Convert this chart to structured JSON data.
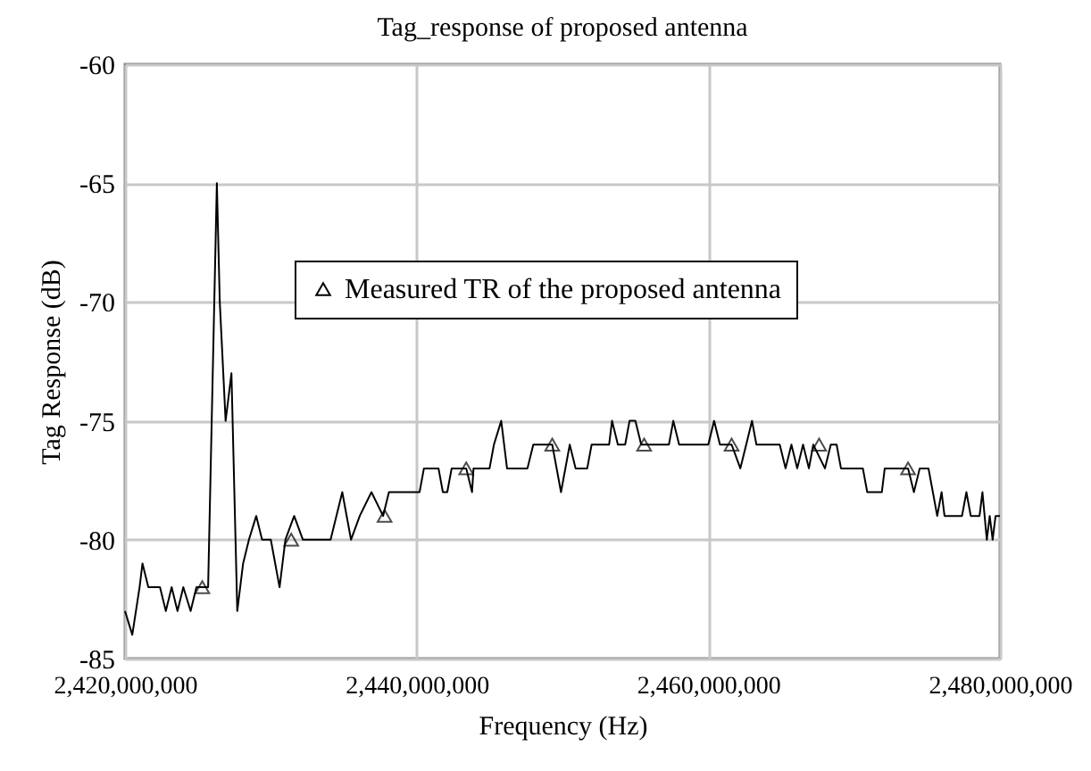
{
  "chart_data": {
    "type": "line",
    "title": "Tag_response of proposed antenna",
    "xlabel": "Frequency (Hz)",
    "ylabel": "Tag Response (dB)",
    "xlim": [
      2420000000,
      2480000000
    ],
    "ylim": [
      -85,
      -60
    ],
    "xticks": [
      {
        "value": 2420000000,
        "label": "2,420,000,000"
      },
      {
        "value": 2440000000,
        "label": "2,440,000,000"
      },
      {
        "value": 2460000000,
        "label": "2,460,000,000"
      },
      {
        "value": 2480000000,
        "label": "2,480,000,000"
      }
    ],
    "yticks": [
      -85,
      -80,
      -75,
      -70,
      -65,
      -60
    ],
    "grid": true,
    "legend": "top",
    "line_style": "solid",
    "series": [
      {
        "name": "Measured TR of the proposed antenna",
        "color": "#000000",
        "marker": "none",
        "x": [
          2420000000,
          2420500000,
          2421000000,
          2421200000,
          2421600000,
          2422400000,
          2422800000,
          2423200000,
          2423600000,
          2424000000,
          2424500000,
          2424900000,
          2425300000,
          2425700000,
          2426300000,
          2426500000,
          2426900000,
          2427300000,
          2427700000,
          2428100000,
          2428500000,
          2429000000,
          2429400000,
          2430000000,
          2430600000,
          2431000000,
          2431600000,
          2432200000,
          2434100000,
          2434900000,
          2435500000,
          2436100000,
          2436900000,
          2437700000,
          2438100000,
          2440200000,
          2440500000,
          2441500000,
          2441800000,
          2442100000,
          2442400000,
          2443400000,
          2443800000,
          2443900000,
          2445000000,
          2445300000,
          2445800000,
          2446200000,
          2447600000,
          2448000000,
          2449300000,
          2449900000,
          2450500000,
          2450900000,
          2451700000,
          2452000000,
          2453200000,
          2453400000,
          2453800000,
          2454300000,
          2454600000,
          2455000000,
          2455400000,
          2457300000,
          2457600000,
          2458000000,
          2460000000,
          2460400000,
          2460800000,
          2461600000,
          2462200000,
          2462600000,
          2463000000,
          2463300000,
          2464900000,
          2465300000,
          2465700000,
          2466100000,
          2466500000,
          2466900000,
          2467200000,
          2468000000,
          2468400000,
          2468800000,
          2469100000,
          2470600000,
          2470900000,
          2471900000,
          2472100000,
          2473700000,
          2474100000,
          2474500000,
          2475100000,
          2475400000,
          2475700000,
          2476000000,
          2476200000,
          2477400000,
          2477700000,
          2478000000,
          2478600000,
          2478800000,
          2479100000,
          2479300000,
          2479500000,
          2479700000,
          2480000000
        ],
        "values": [
          -83,
          -84,
          -82,
          -81,
          -82,
          -82,
          -83,
          -82,
          -83,
          -82,
          -83,
          -82,
          -82,
          -82,
          -65,
          -70,
          -75,
          -73,
          -83,
          -81,
          -80,
          -79,
          -80,
          -80,
          -82,
          -80,
          -79,
          -80,
          -80,
          -78,
          -80,
          -79,
          -78,
          -79,
          -78,
          -78,
          -77,
          -77,
          -78,
          -78,
          -77,
          -77,
          -78,
          -77,
          -77,
          -76,
          -75,
          -77,
          -77,
          -76,
          -76,
          -78,
          -76,
          -77,
          -77,
          -76,
          -76,
          -75,
          -76,
          -76,
          -75,
          -75,
          -76,
          -76,
          -75,
          -76,
          -76,
          -75,
          -76,
          -76,
          -77,
          -76,
          -75,
          -76,
          -76,
          -77,
          -76,
          -77,
          -76,
          -77,
          -76,
          -77,
          -76,
          -76,
          -77,
          -77,
          -78,
          -78,
          -77,
          -77,
          -78,
          -77,
          -77,
          -78,
          -79,
          -78,
          -79,
          -79,
          -78,
          -79,
          -79,
          -78,
          -80,
          -79,
          -80,
          -79,
          -79
        ]
      },
      {
        "type": "scatter",
        "color": "#000000",
        "marker": "triangle",
        "x": [
          2425300000,
          2431400000,
          2437800000,
          2443400000,
          2449300000,
          2455600000,
          2461600000,
          2467600000,
          2473700000
        ],
        "values": [
          -82,
          -80,
          -79,
          -77,
          -76,
          -76,
          -76,
          -76,
          -77
        ]
      }
    ]
  }
}
